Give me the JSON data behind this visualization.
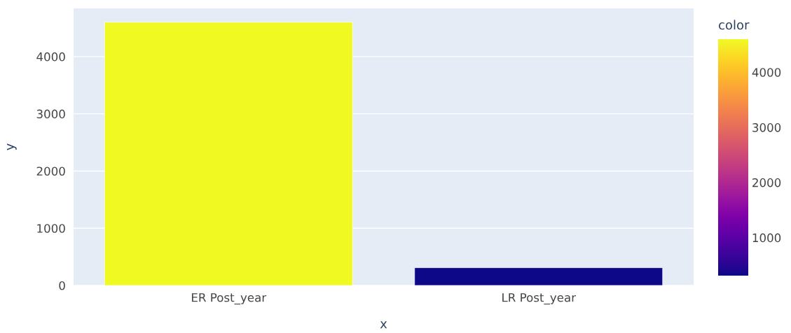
{
  "chart_data": {
    "type": "bar",
    "xlabel": "x",
    "ylabel": "y",
    "clabel": "color",
    "categories": [
      "ER Post_year",
      "LR Post_year"
    ],
    "values": [
      4600,
      310
    ],
    "colors": [
      "#f0f921",
      "#0d0887"
    ],
    "ylim": [
      0,
      4842
    ],
    "yticks": [
      0,
      1000,
      2000,
      3000,
      4000
    ],
    "clim": [
      310,
      4600
    ],
    "cticks": [
      1000,
      2000,
      3000,
      4000
    ],
    "grid": "y",
    "legend": false
  }
}
